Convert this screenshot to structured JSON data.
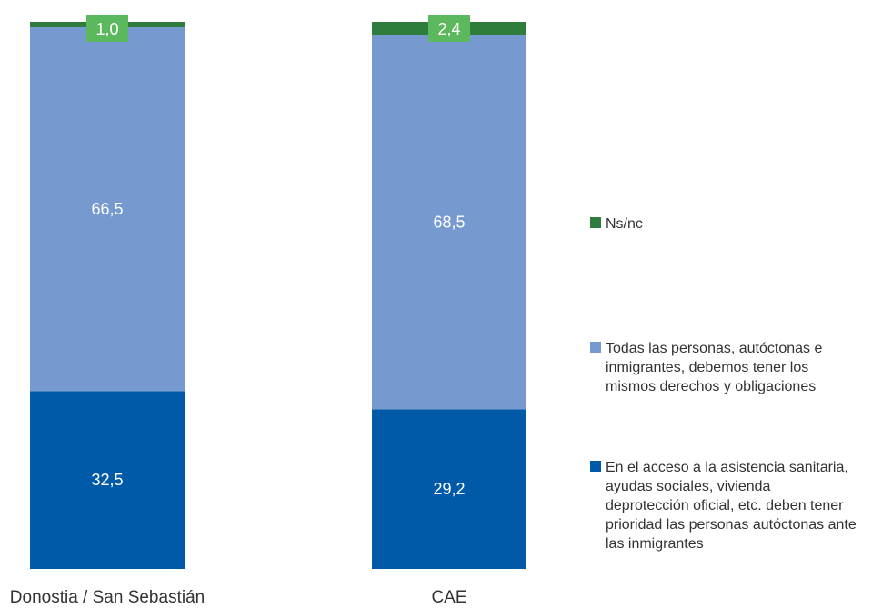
{
  "chart_data": {
    "type": "bar",
    "stacked": true,
    "percent_stacked": true,
    "categories": [
      "Donostia / San Sebastián",
      "CAE"
    ],
    "series": [
      {
        "name": "En el acceso a la asistencia sanitaria, ayudas sociales, vivienda deprotección oficial, etc. deben tener prioridad las personas autóctonas ante las inmigrantes",
        "values": [
          32.5,
          29.2
        ],
        "labels": [
          "32,5",
          "29,2"
        ],
        "color": "#005aa8"
      },
      {
        "name": "Todas las personas, autóctonas e inmigrantes, debemos tener los mismos derechos y obligaciones",
        "values": [
          66.5,
          68.5
        ],
        "labels": [
          "66,5",
          "68,5"
        ],
        "color": "#7699d0"
      },
      {
        "name": "Ns/nc",
        "values": [
          1.0,
          2.4
        ],
        "labels": [
          "1,0",
          "2,4"
        ],
        "color": "#2e7d3c",
        "label_bg": "#5cb85c"
      }
    ],
    "legend": {
      "position": "right",
      "entries": [
        {
          "text": "Ns/nc",
          "color": "#2e7d3c"
        },
        {
          "text": "Todas las personas, autóctonas e\ninmigrantes, debemos tener los\nmismos derechos y obligaciones",
          "color": "#7699d0"
        },
        {
          "text": "En el acceso a la asistencia sanitaria,\nayudas sociales, vivienda\ndeprotección oficial, etc. deben tener\nprioridad las personas autóctonas ante\nlas inmigrantes",
          "color": "#005aa8"
        }
      ]
    },
    "ylim": [
      0,
      100
    ],
    "grid": false,
    "value_label_color": "#ffffff",
    "category_label_color": "#333333"
  }
}
